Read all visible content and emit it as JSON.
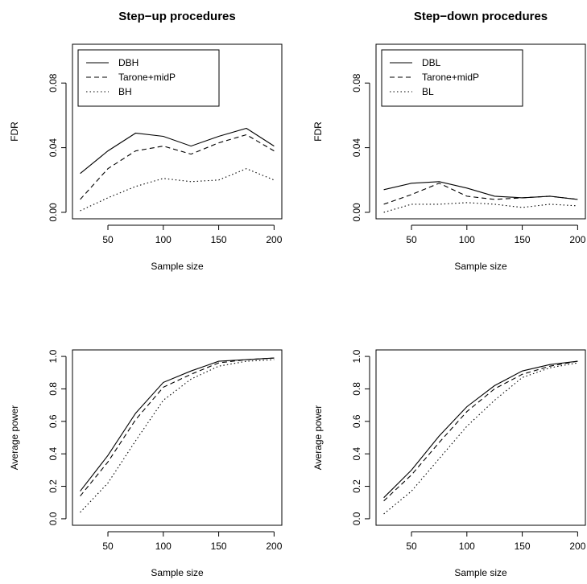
{
  "chart_data": [
    {
      "type": "line",
      "title": "Step−up procedures",
      "xlabel": "Sample size",
      "ylabel": "FDR",
      "x": [
        25,
        50,
        75,
        100,
        125,
        150,
        175,
        200
      ],
      "xlim": [
        25,
        200
      ],
      "ylim": [
        0,
        0.1
      ],
      "xticks": [
        "50",
        "100",
        "150",
        "200"
      ],
      "yticks": [
        "0.00",
        "0.04",
        "0.08"
      ],
      "legend": "top-left",
      "series": [
        {
          "name": "DBH",
          "linestyle": "solid",
          "values": [
            0.024,
            0.038,
            0.049,
            0.047,
            0.041,
            0.047,
            0.052,
            0.041
          ]
        },
        {
          "name": "Tarone+midP",
          "linestyle": "dashed",
          "values": [
            0.008,
            0.027,
            0.038,
            0.041,
            0.036,
            0.043,
            0.048,
            0.038
          ]
        },
        {
          "name": "BH",
          "linestyle": "dotted",
          "values": [
            0.001,
            0.009,
            0.016,
            0.021,
            0.019,
            0.02,
            0.027,
            0.02
          ]
        }
      ]
    },
    {
      "type": "line",
      "title": "Step−down procedures",
      "xlabel": "Sample size",
      "ylabel": "FDR",
      "x": [
        25,
        50,
        75,
        100,
        125,
        150,
        175,
        200
      ],
      "xlim": [
        25,
        200
      ],
      "ylim": [
        0,
        0.1
      ],
      "xticks": [
        "50",
        "100",
        "150",
        "200"
      ],
      "yticks": [
        "0.00",
        "0.04",
        "0.08"
      ],
      "legend": "top-left",
      "series": [
        {
          "name": "DBL",
          "linestyle": "solid",
          "values": [
            0.014,
            0.018,
            0.019,
            0.015,
            0.01,
            0.009,
            0.01,
            0.008
          ]
        },
        {
          "name": "Tarone+midP",
          "linestyle": "dashed",
          "values": [
            0.005,
            0.011,
            0.018,
            0.01,
            0.008,
            0.009,
            0.01,
            0.008
          ]
        },
        {
          "name": "BL",
          "linestyle": "dotted",
          "values": [
            0.0,
            0.005,
            0.005,
            0.006,
            0.005,
            0.003,
            0.005,
            0.004
          ]
        }
      ]
    },
    {
      "type": "line",
      "title": "",
      "xlabel": "Sample size",
      "ylabel": "Average power",
      "x": [
        25,
        50,
        75,
        100,
        125,
        150,
        175,
        200
      ],
      "xlim": [
        25,
        200
      ],
      "ylim": [
        0,
        1.0
      ],
      "xticks": [
        "50",
        "100",
        "150",
        "200"
      ],
      "yticks": [
        "0.0",
        "0.2",
        "0.4",
        "0.6",
        "0.8",
        "1.0"
      ],
      "legend": "none",
      "series": [
        {
          "linestyle": "solid",
          "values": [
            0.17,
            0.39,
            0.65,
            0.84,
            0.91,
            0.97,
            0.98,
            0.99
          ]
        },
        {
          "linestyle": "dashed",
          "values": [
            0.14,
            0.35,
            0.61,
            0.81,
            0.89,
            0.96,
            0.98,
            0.99
          ]
        },
        {
          "linestyle": "dotted",
          "values": [
            0.04,
            0.22,
            0.48,
            0.73,
            0.86,
            0.94,
            0.97,
            0.98
          ]
        }
      ]
    },
    {
      "type": "line",
      "title": "",
      "xlabel": "Sample size",
      "ylabel": "Average power",
      "x": [
        25,
        50,
        75,
        100,
        125,
        150,
        175,
        200
      ],
      "xlim": [
        25,
        200
      ],
      "ylim": [
        0,
        1.0
      ],
      "xticks": [
        "50",
        "100",
        "150",
        "200"
      ],
      "yticks": [
        "0.0",
        "0.2",
        "0.4",
        "0.6",
        "0.8",
        "1.0"
      ],
      "legend": "none",
      "series": [
        {
          "linestyle": "solid",
          "values": [
            0.13,
            0.3,
            0.51,
            0.69,
            0.82,
            0.91,
            0.95,
            0.97
          ]
        },
        {
          "linestyle": "dashed",
          "values": [
            0.11,
            0.27,
            0.47,
            0.66,
            0.8,
            0.89,
            0.94,
            0.97
          ]
        },
        {
          "linestyle": "dotted",
          "values": [
            0.03,
            0.17,
            0.37,
            0.57,
            0.73,
            0.87,
            0.93,
            0.96
          ]
        }
      ]
    }
  ]
}
